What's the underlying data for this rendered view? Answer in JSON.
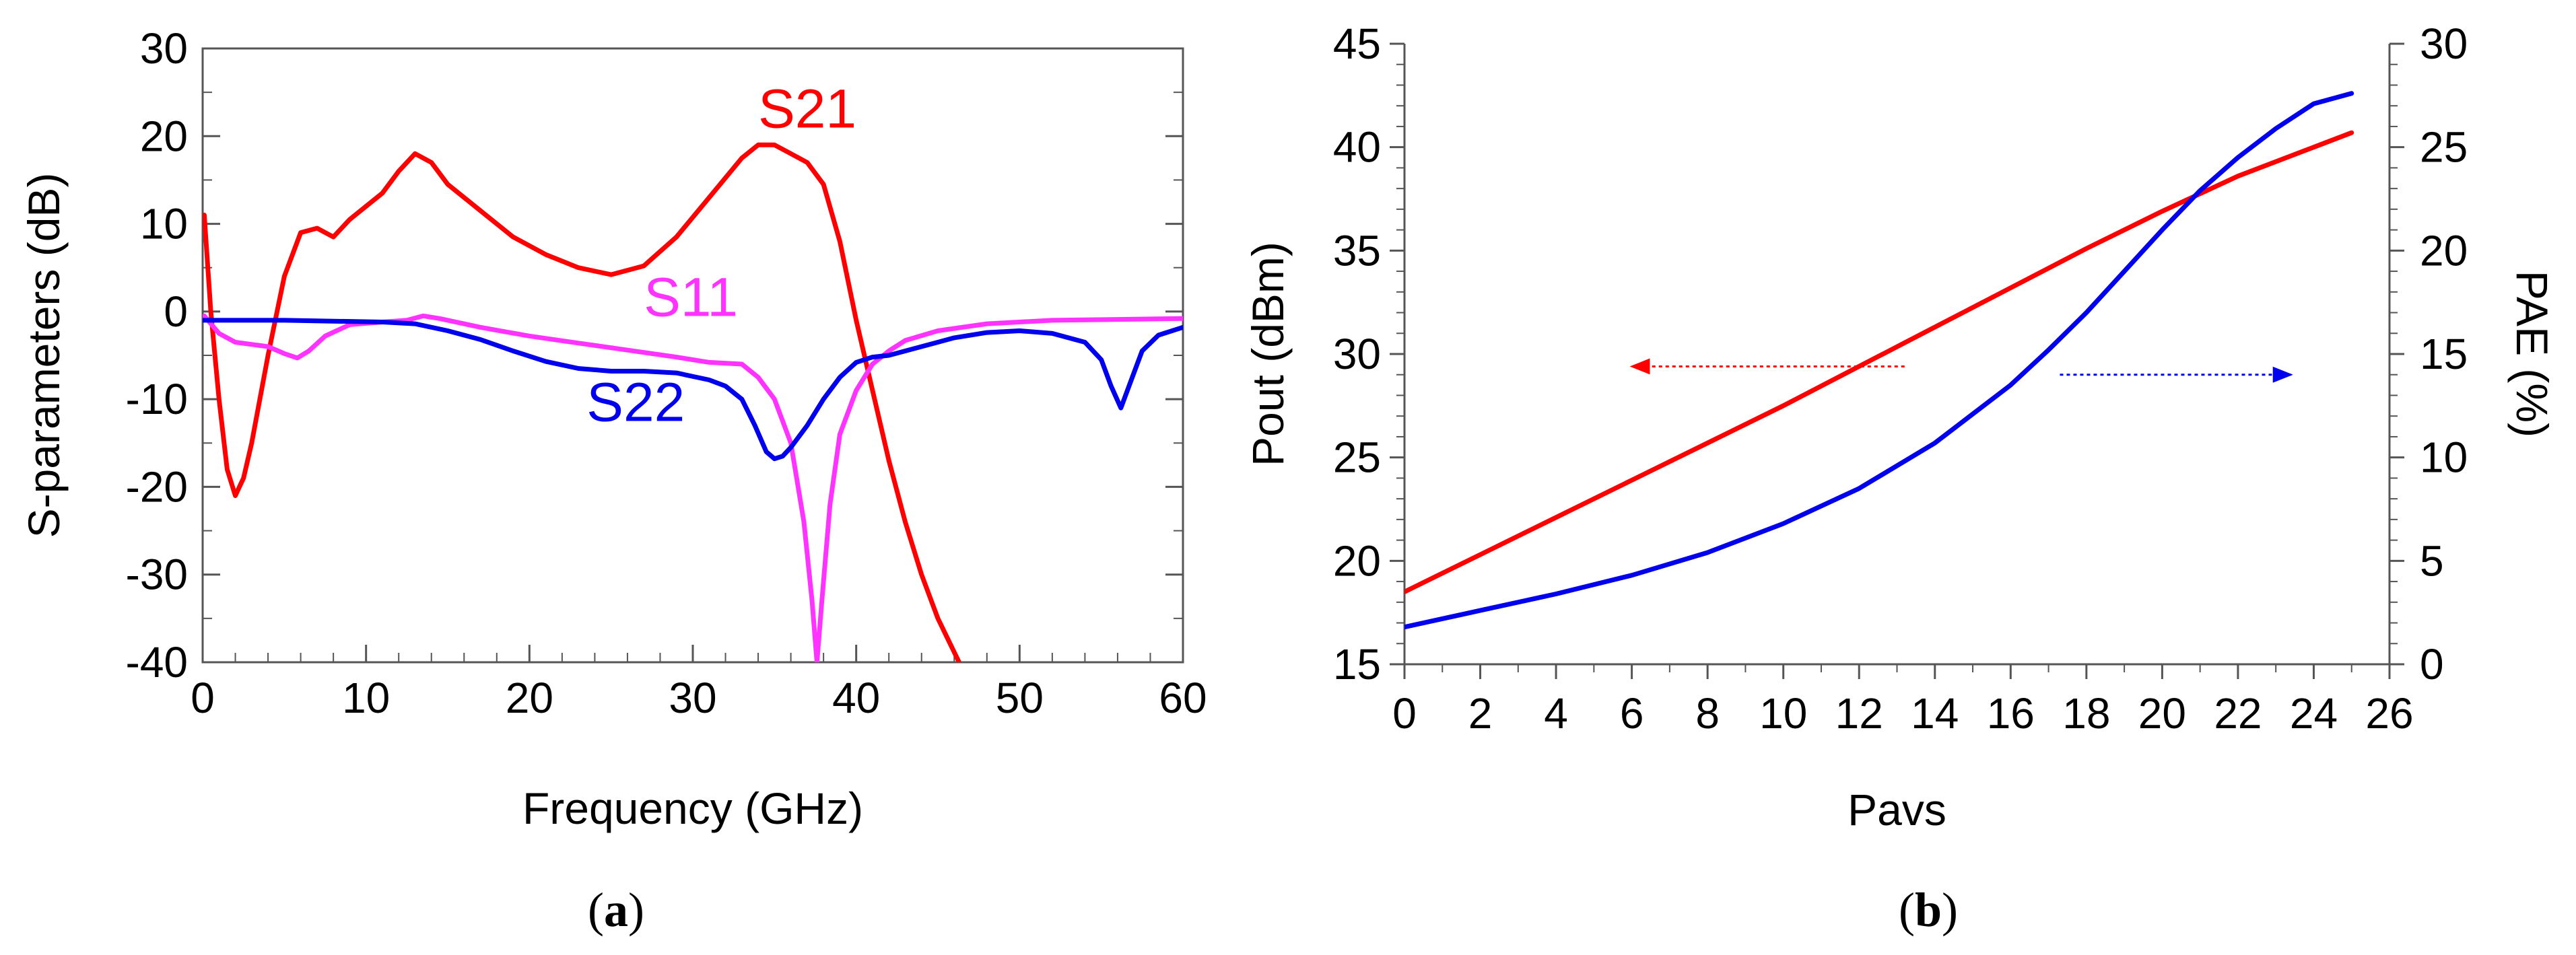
{
  "chart_data": [
    {
      "type": "line",
      "panel": "a",
      "caption_open": "(",
      "caption_letter": "a",
      "caption_close": ")",
      "xlabel": "Frequency (GHz)",
      "ylabel": "S-parameters (dB)",
      "xlim": [
        0,
        60
      ],
      "ylim": [
        -40,
        30
      ],
      "xticks": [
        "0",
        "10",
        "20",
        "30",
        "40",
        "50",
        "60"
      ],
      "yticks": [
        "-40",
        "-30",
        "-20",
        "-10",
        "0",
        "10",
        "20",
        "30"
      ],
      "grid": false,
      "series": [
        {
          "name": "S21",
          "color": "#ff0000",
          "x": [
            0.1,
            0.5,
            1.0,
            1.5,
            2.0,
            2.5,
            3.0,
            4.0,
            5.0,
            6.0,
            7.0,
            8.0,
            9.0,
            10.0,
            11.0,
            12.0,
            13.0,
            14.0,
            15.0,
            17.0,
            19.0,
            21.0,
            23.0,
            25.0,
            27.0,
            29.0,
            31.0,
            33.0,
            34.0,
            35.0,
            36.0,
            37.0,
            38.0,
            39.0,
            40.0,
            41.0,
            42.0,
            43.0,
            44.0,
            45.0,
            46.3
          ],
          "y": [
            11.0,
            0.0,
            -10.0,
            -18.0,
            -21.0,
            -19.0,
            -15.0,
            -5.0,
            4.0,
            9.0,
            9.5,
            8.5,
            10.5,
            12.0,
            13.5,
            16.0,
            18.0,
            17.0,
            14.5,
            11.5,
            8.5,
            6.5,
            5.0,
            4.2,
            5.2,
            8.5,
            13.0,
            17.5,
            19.0,
            19.0,
            18.0,
            17.0,
            14.5,
            8.0,
            -1.0,
            -9.0,
            -17.0,
            -24.0,
            -30.0,
            -35.0,
            -40.0
          ]
        },
        {
          "name": "S11",
          "color": "#ff33ff",
          "x": [
            0.1,
            1.0,
            2.0,
            4.0,
            5.0,
            5.8,
            6.5,
            7.5,
            9.0,
            11.0,
            12.5,
            13.5,
            14.5,
            17.0,
            20.0,
            23.0,
            26.0,
            29.0,
            31.0,
            33.0,
            34.0,
            35.0,
            36.0,
            36.8,
            37.3,
            37.6,
            37.9,
            38.4,
            39.0,
            40.0,
            41.0,
            42.0,
            43.0,
            45.0,
            48.0,
            52.0,
            56.0,
            60.0
          ],
          "y": [
            -0.5,
            -2.5,
            -3.5,
            -4.0,
            -4.8,
            -5.3,
            -4.5,
            -2.8,
            -1.5,
            -1.2,
            -1.0,
            -0.5,
            -0.8,
            -1.8,
            -2.8,
            -3.6,
            -4.4,
            -5.2,
            -5.8,
            -6.0,
            -7.5,
            -10.0,
            -15.0,
            -24.0,
            -33.0,
            -40.0,
            -33.0,
            -22.0,
            -14.0,
            -9.0,
            -6.0,
            -4.5,
            -3.3,
            -2.2,
            -1.4,
            -1.0,
            -0.9,
            -0.8
          ]
        },
        {
          "name": "S22",
          "color": "#0000ee",
          "x": [
            0.0,
            2.0,
            5.0,
            8.0,
            11.0,
            13.0,
            15.0,
            17.0,
            19.0,
            21.0,
            23.0,
            25.0,
            27.0,
            29.0,
            31.0,
            32.0,
            33.0,
            33.8,
            34.5,
            35.0,
            35.5,
            36.0,
            37.0,
            38.0,
            39.0,
            40.0,
            41.0,
            42.0,
            44.0,
            46.0,
            48.0,
            50.0,
            52.0,
            54.0,
            55.0,
            55.6,
            56.2,
            56.8,
            57.5,
            58.5,
            60.0
          ],
          "y": [
            -1.0,
            -1.0,
            -1.0,
            -1.1,
            -1.2,
            -1.4,
            -2.2,
            -3.2,
            -4.5,
            -5.7,
            -6.5,
            -6.8,
            -6.8,
            -7.0,
            -7.8,
            -8.5,
            -10.0,
            -13.0,
            -16.0,
            -16.8,
            -16.5,
            -15.5,
            -13.0,
            -10.0,
            -7.5,
            -5.8,
            -5.2,
            -5.0,
            -4.0,
            -3.0,
            -2.4,
            -2.2,
            -2.5,
            -3.5,
            -5.5,
            -8.5,
            -11.0,
            -8.0,
            -4.5,
            -2.7,
            -1.8
          ]
        }
      ]
    },
    {
      "type": "line",
      "panel": "b",
      "caption_open": "(",
      "caption_letter": "b",
      "caption_close": ")",
      "xlabel": "Pavs",
      "ylabel": "Pout (dBm)",
      "y2label": "PAE (%)",
      "xlim": [
        0,
        26
      ],
      "ylim": [
        15,
        45
      ],
      "y2lim": [
        0,
        30
      ],
      "xticks": [
        "0",
        "2",
        "4",
        "6",
        "8",
        "10",
        "12",
        "14",
        "16",
        "18",
        "20",
        "22",
        "24",
        "26"
      ],
      "yticks": [
        "15",
        "20",
        "25",
        "30",
        "35",
        "40",
        "45"
      ],
      "y2ticks": [
        "0",
        "5",
        "10",
        "15",
        "20",
        "25",
        "30"
      ],
      "grid": false,
      "series": [
        {
          "name": "Pout",
          "axis": "left",
          "color": "#ff0000",
          "x": [
            0,
            2,
            4,
            6,
            8,
            10,
            12,
            14,
            16,
            18,
            20,
            22,
            24,
            25
          ],
          "y": [
            18.5,
            20.3,
            22.1,
            23.9,
            25.7,
            27.5,
            29.4,
            31.3,
            33.2,
            35.1,
            36.9,
            38.6,
            40.0,
            40.7
          ]
        },
        {
          "name": "PAE",
          "axis": "right",
          "color": "#0000ee",
          "x": [
            0,
            2,
            4,
            6,
            8,
            10,
            12,
            14,
            16,
            17,
            18,
            19,
            20,
            21,
            22,
            23,
            24,
            25
          ],
          "y": [
            1.8,
            2.6,
            3.4,
            4.3,
            5.4,
            6.8,
            8.5,
            10.7,
            13.5,
            15.2,
            17.0,
            19.0,
            21.0,
            22.9,
            24.5,
            25.9,
            27.1,
            27.6
          ]
        }
      ],
      "annotations": [
        {
          "type": "arrow",
          "direction": "left",
          "color": "#ff0000",
          "from": [
            13.2,
            29.4
          ],
          "to": [
            6.0,
            29.4
          ]
        },
        {
          "type": "arrow",
          "direction": "right",
          "color": "#0000ee",
          "from": [
            17.3,
            14.0
          ],
          "to": [
            23.4,
            14.0
          ]
        }
      ]
    }
  ]
}
